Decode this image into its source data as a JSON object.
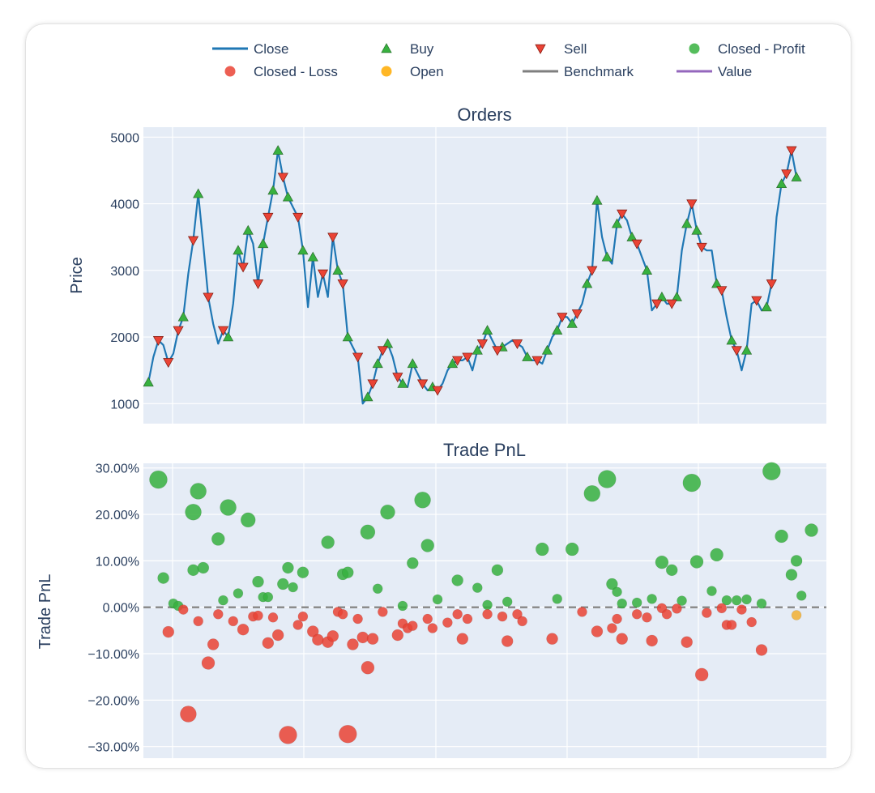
{
  "legend": [
    {
      "label": "Close",
      "symbol": "line",
      "color": "#1f77b4"
    },
    {
      "label": "Buy",
      "symbol": "triangle-up",
      "color": "#37b13f"
    },
    {
      "label": "Sell",
      "symbol": "triangle-down",
      "color": "#ea4335"
    },
    {
      "label": "Closed - Profit",
      "symbol": "circle",
      "color": "#37b13f"
    },
    {
      "label": "Closed - Loss",
      "symbol": "circle",
      "color": "#ea4335"
    },
    {
      "label": "Open",
      "symbol": "circle",
      "color": "#ffaa00"
    },
    {
      "label": "Benchmark",
      "symbol": "line",
      "color": "#7f7f7f"
    },
    {
      "label": "Value",
      "symbol": "line",
      "color": "#9467bd"
    }
  ],
  "chart_data": [
    {
      "type": "line",
      "title": "Orders",
      "ylabel": "Price",
      "xlabel": "",
      "ylim": [
        700,
        5150
      ],
      "yticks": [
        1000,
        2000,
        3000,
        4000,
        5000
      ],
      "ytick_labels": [
        "1000",
        "2000",
        "3000",
        "4000",
        "5000"
      ],
      "x_index_range": [
        -1,
        136
      ],
      "grid": true,
      "series": [
        {
          "name": "Close",
          "color": "#1f77b4",
          "values": [
            1320,
            1700,
            1950,
            1880,
            1620,
            1750,
            2100,
            2300,
            2950,
            3450,
            4150,
            3400,
            2600,
            2200,
            1900,
            2100,
            2000,
            2500,
            3300,
            3050,
            3600,
            3400,
            2800,
            3400,
            3800,
            4200,
            4800,
            4400,
            4100,
            3950,
            3800,
            3300,
            2450,
            3200,
            2600,
            2950,
            2600,
            3500,
            3000,
            2800,
            2000,
            1850,
            1700,
            1000,
            1100,
            1300,
            1600,
            1800,
            1900,
            1700,
            1400,
            1300,
            1250,
            1600,
            1450,
            1300,
            1200,
            1250,
            1200,
            1300,
            1500,
            1600,
            1650,
            1650,
            1700,
            1500,
            1800,
            1900,
            2100,
            1950,
            1800,
            1850,
            1900,
            1950,
            1900,
            1850,
            1700,
            1650,
            1650,
            1600,
            1800,
            2000,
            2100,
            2300,
            2300,
            2200,
            2350,
            2500,
            2800,
            3000,
            4050,
            3500,
            3200,
            3100,
            3700,
            3850,
            3750,
            3500,
            3400,
            3200,
            3000,
            2400,
            2500,
            2600,
            2500,
            2500,
            2600,
            3300,
            3700,
            4000,
            3600,
            3350,
            3300,
            3300,
            2800,
            2700,
            2300,
            1950,
            1800,
            1500,
            1800,
            2500,
            2550,
            2400,
            2450,
            2800,
            3800,
            4300,
            4450,
            4800,
            4400
          ],
          "buy_indices": [
            0,
            7,
            10,
            16,
            18,
            20,
            23,
            25,
            26,
            28,
            31,
            33,
            38,
            40,
            44,
            46,
            48,
            51,
            53,
            57,
            61,
            66,
            68,
            71,
            76,
            80,
            82,
            85,
            88,
            90,
            92,
            94,
            97,
            100,
            103,
            106,
            108,
            110,
            114,
            117,
            120,
            124,
            127,
            130
          ],
          "sell_indices": [
            2,
            4,
            6,
            9,
            12,
            15,
            19,
            22,
            24,
            27,
            30,
            35,
            37,
            39,
            42,
            45,
            47,
            50,
            55,
            58,
            62,
            64,
            67,
            70,
            74,
            78,
            83,
            86,
            89,
            95,
            98,
            102,
            105,
            109,
            111,
            115,
            118,
            122,
            125,
            128,
            129
          ]
        }
      ]
    },
    {
      "type": "scatter",
      "title": "Trade PnL",
      "ylabel": "Trade PnL",
      "xlabel": "",
      "ylim": [
        -0.325,
        0.31
      ],
      "yticks": [
        -0.3,
        -0.2,
        -0.1,
        0,
        0.1,
        0.2,
        0.3
      ],
      "ytick_labels": [
        "−30.00%",
        "−20.00%",
        "−10.00%",
        "0.00%",
        "10.00%",
        "20.00%",
        "30.00%"
      ],
      "x_index_range": [
        -1,
        136
      ],
      "benchmark": 0,
      "grid": true,
      "series": [
        {
          "name": "Closed - Profit",
          "color": "#37b13f",
          "x": [
            2,
            3,
            5,
            6,
            9,
            9,
            10,
            11,
            14,
            15,
            16,
            18,
            20,
            22,
            23,
            24,
            27,
            28,
            29,
            31,
            36,
            39,
            40,
            44,
            46,
            48,
            51,
            53,
            55,
            56,
            58,
            62,
            66,
            68,
            70,
            72,
            79,
            82,
            85,
            89,
            92,
            93,
            94,
            95,
            98,
            101,
            103,
            105,
            107,
            109,
            110,
            113,
            114,
            116,
            118,
            120,
            123,
            125,
            127,
            129,
            130,
            131,
            133
          ],
          "y": [
            0.275,
            0.063,
            0.008,
            0.003,
            0.205,
            0.08,
            0.25,
            0.085,
            0.147,
            0.015,
            0.215,
            0.03,
            0.188,
            0.055,
            0.022,
            0.022,
            0.05,
            0.085,
            0.043,
            0.075,
            0.14,
            0.071,
            0.075,
            0.162,
            0.04,
            0.205,
            0.003,
            0.095,
            0.231,
            0.133,
            0.017,
            0.058,
            0.042,
            0.005,
            0.08,
            0.012,
            0.125,
            0.018,
            0.125,
            0.245,
            0.276,
            0.05,
            0.033,
            0.008,
            0.01,
            0.018,
            0.097,
            0.08,
            0.014,
            0.268,
            0.098,
            0.035,
            0.113,
            0.015,
            0.015,
            0.017,
            0.008,
            0.293,
            0.153,
            0.07,
            0.1,
            0.025,
            0.166
          ],
          "sizes": [
            11,
            7,
            6,
            6,
            10,
            7,
            10,
            7,
            8,
            6,
            10,
            6,
            9,
            7,
            6,
            6,
            7,
            7,
            6,
            7,
            8,
            7,
            7,
            9,
            6,
            9,
            6,
            7,
            10,
            8,
            6,
            7,
            6,
            6,
            7,
            6,
            8,
            6,
            8,
            10,
            11,
            7,
            6,
            6,
            6,
            6,
            8,
            7,
            6,
            11,
            8,
            6,
            8,
            6,
            6,
            6,
            6,
            11,
            8,
            7,
            7,
            6,
            8
          ]
        },
        {
          "name": "Closed - Loss",
          "color": "#ea4335",
          "x": [
            4,
            7,
            8,
            10,
            12,
            13,
            14,
            17,
            19,
            21,
            22,
            24,
            25,
            26,
            28,
            30,
            31,
            33,
            34,
            36,
            37,
            38,
            39,
            40,
            41,
            42,
            43,
            44,
            45,
            47,
            50,
            51,
            52,
            53,
            56,
            57,
            60,
            62,
            63,
            64,
            68,
            71,
            72,
            74,
            75,
            81,
            87,
            90,
            93,
            94,
            95,
            98,
            100,
            101,
            103,
            104,
            106,
            108,
            111,
            112,
            115,
            116,
            117,
            119,
            121,
            123
          ],
          "y": [
            -0.053,
            -0.005,
            -0.23,
            -0.03,
            -0.12,
            -0.08,
            -0.015,
            -0.03,
            -0.048,
            -0.02,
            -0.018,
            -0.077,
            -0.022,
            -0.06,
            -0.275,
            -0.038,
            -0.02,
            -0.052,
            -0.07,
            -0.075,
            -0.062,
            -0.01,
            -0.015,
            -0.273,
            -0.08,
            -0.025,
            -0.065,
            -0.13,
            -0.068,
            -0.01,
            -0.06,
            -0.035,
            -0.045,
            -0.04,
            -0.025,
            -0.045,
            -0.033,
            -0.015,
            -0.068,
            -0.025,
            -0.015,
            -0.02,
            -0.073,
            -0.015,
            -0.03,
            -0.068,
            -0.01,
            -0.052,
            -0.045,
            -0.025,
            -0.068,
            -0.015,
            -0.022,
            -0.072,
            -0.002,
            -0.015,
            -0.003,
            -0.075,
            -0.145,
            -0.012,
            -0.002,
            -0.038,
            -0.038,
            -0.005,
            -0.032,
            -0.092
          ],
          "sizes": [
            7,
            6,
            10,
            6,
            8,
            7,
            6,
            6,
            7,
            6,
            6,
            7,
            6,
            7,
            11,
            6,
            6,
            7,
            7,
            7,
            7,
            6,
            6,
            11,
            7,
            6,
            7,
            8,
            7,
            6,
            7,
            6,
            6,
            6,
            6,
            6,
            6,
            6,
            7,
            6,
            6,
            6,
            7,
            6,
            6,
            7,
            6,
            7,
            6,
            6,
            7,
            6,
            6,
            7,
            6,
            6,
            6,
            7,
            8,
            6,
            6,
            6,
            6,
            6,
            6,
            7
          ]
        },
        {
          "name": "Open",
          "color": "#f2b134",
          "x": [
            130
          ],
          "y": [
            -0.017
          ],
          "sizes": [
            6
          ]
        }
      ]
    }
  ]
}
